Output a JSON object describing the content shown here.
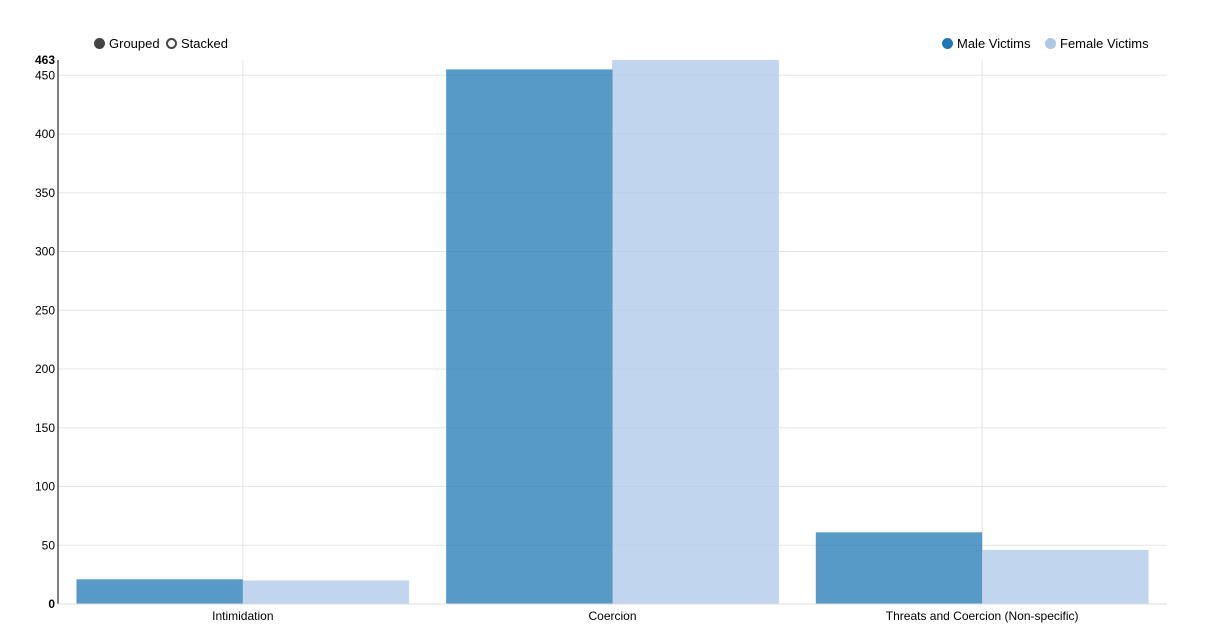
{
  "controls": {
    "grouped_label": "Grouped",
    "stacked_label": "Stacked",
    "selected": "Grouped"
  },
  "legend": {
    "items": [
      {
        "label": "Male Victims",
        "color": "#1f77b4"
      },
      {
        "label": "Female Victims",
        "color": "#aec7e8"
      }
    ]
  },
  "chart_data": {
    "type": "bar",
    "mode": "grouped",
    "categories": [
      "Intimidation",
      "Coercion",
      "Threats and Coercion (Non-specific)"
    ],
    "series": [
      {
        "name": "Male Victims",
        "color": "#1f77b4",
        "values": [
          21,
          455,
          61
        ]
      },
      {
        "name": "Female Victims",
        "color": "#aec7e8",
        "values": [
          20,
          463,
          46
        ]
      }
    ],
    "ylim": [
      0,
      463
    ],
    "yticks": [
      0,
      50,
      100,
      150,
      200,
      250,
      300,
      350,
      400,
      450
    ],
    "ymax_label": "463",
    "grid": true,
    "legend_position": "top-right",
    "title": "",
    "xlabel": "",
    "ylabel": ""
  }
}
